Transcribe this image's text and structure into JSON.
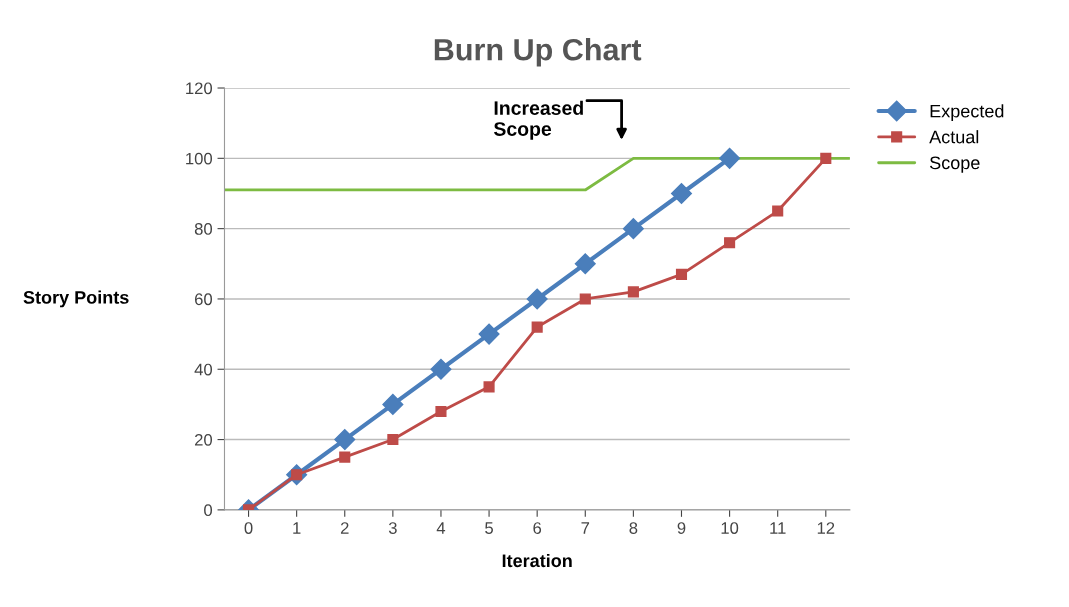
{
  "chart_data": {
    "type": "line",
    "title": "Burn Up Chart",
    "xlabel": "Iteration",
    "ylabel": "Story Points",
    "xlim": [
      -0.5,
      12.5
    ],
    "xticks": [
      0,
      1,
      2,
      3,
      4,
      5,
      6,
      7,
      8,
      9,
      10,
      11,
      12
    ],
    "ylim": [
      0,
      120
    ],
    "yticks": [
      0,
      20,
      40,
      60,
      80,
      100,
      120
    ],
    "grid": "y",
    "legend": "right",
    "series": [
      {
        "name": "Expected",
        "color": "#4a7ebb",
        "marker": "diamond",
        "x": [
          0,
          1,
          2,
          3,
          4,
          5,
          6,
          7,
          8,
          9,
          10
        ],
        "values": [
          0,
          10,
          20,
          30,
          40,
          50,
          60,
          70,
          80,
          90,
          100
        ]
      },
      {
        "name": "Actual",
        "color": "#be4b48",
        "marker": "square",
        "x": [
          0,
          1,
          2,
          3,
          4,
          5,
          6,
          7,
          8,
          9,
          10,
          11,
          12
        ],
        "values": [
          0,
          10,
          15,
          20,
          28,
          35,
          52,
          60,
          62,
          67,
          76,
          85,
          100
        ]
      },
      {
        "name": "Scope",
        "color": "#7dbb42",
        "marker": "none",
        "x": [
          -0.5,
          7,
          8,
          12.5
        ],
        "values": [
          91,
          91,
          100,
          100
        ]
      }
    ],
    "annotations": [
      "Increased\nScope"
    ]
  }
}
